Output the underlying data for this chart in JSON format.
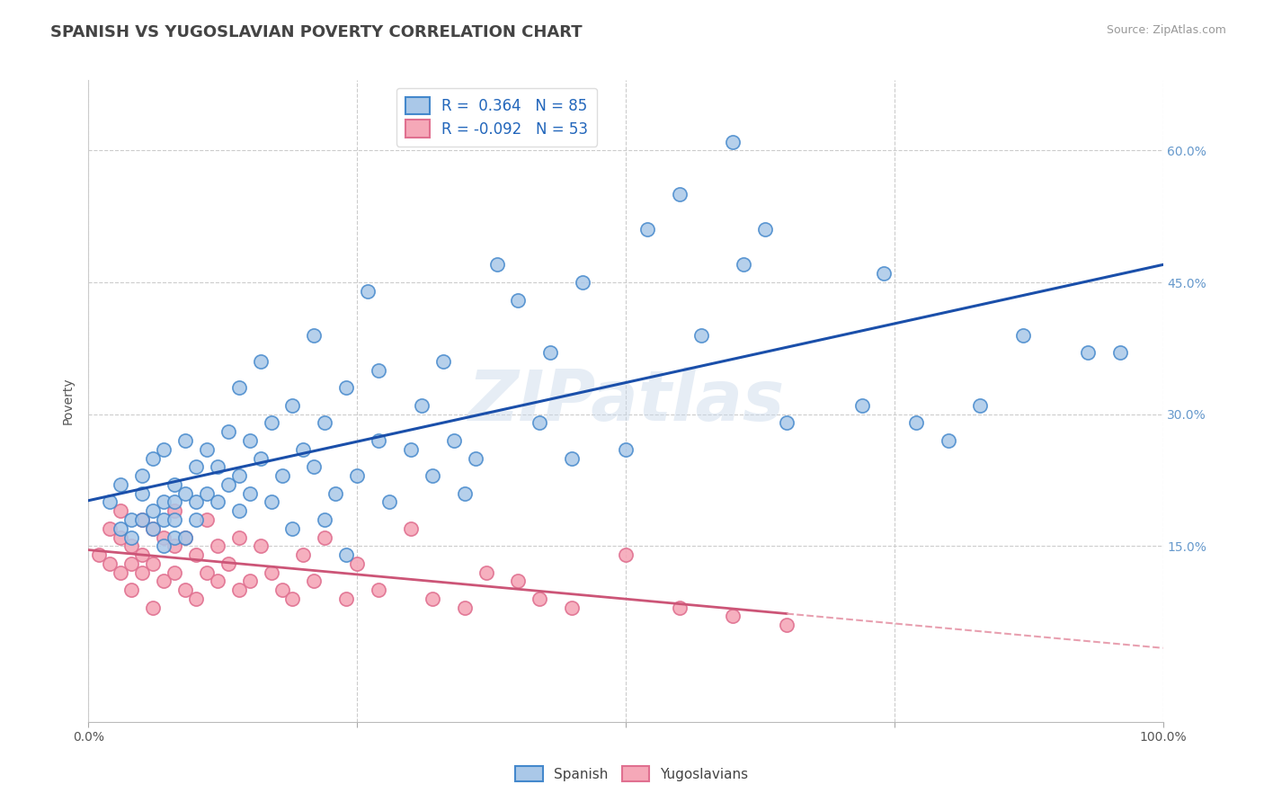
{
  "title": "SPANISH VS YUGOSLAVIAN POVERTY CORRELATION CHART",
  "source_text": "Source: ZipAtlas.com",
  "ylabel": "Poverty",
  "watermark": "ZIPatlas",
  "xlim": [
    0,
    1
  ],
  "ylim": [
    -0.05,
    0.68
  ],
  "xticks": [
    0.0,
    0.25,
    0.5,
    0.75,
    1.0
  ],
  "xticklabels": [
    "0.0%",
    "",
    "",
    "",
    "100.0%"
  ],
  "yticks": [
    0.15,
    0.3,
    0.45,
    0.6
  ],
  "yticklabels": [
    "15.0%",
    "30.0%",
    "45.0%",
    "60.0%"
  ],
  "grid_color": "#cccccc",
  "background_color": "#ffffff",
  "spanish_color": "#aac8e8",
  "yugoslav_color": "#f5a8b8",
  "spanish_edge_color": "#4488cc",
  "yugoslav_edge_color": "#e07090",
  "spanish_line_color": "#1a4faa",
  "yugoslav_line_color": "#cc5577",
  "yugoslav_dash_color": "#e8a0b0",
  "legend_R_spanish": "0.364",
  "legend_N_spanish": "85",
  "legend_R_yugoslav": "-0.092",
  "legend_N_yugoslav": "53",
  "spanish_x": [
    0.02,
    0.03,
    0.03,
    0.04,
    0.04,
    0.05,
    0.05,
    0.05,
    0.06,
    0.06,
    0.06,
    0.07,
    0.07,
    0.07,
    0.07,
    0.08,
    0.08,
    0.08,
    0.08,
    0.09,
    0.09,
    0.09,
    0.1,
    0.1,
    0.1,
    0.11,
    0.11,
    0.12,
    0.12,
    0.13,
    0.13,
    0.14,
    0.14,
    0.14,
    0.15,
    0.15,
    0.16,
    0.16,
    0.17,
    0.17,
    0.18,
    0.19,
    0.19,
    0.2,
    0.21,
    0.21,
    0.22,
    0.22,
    0.23,
    0.24,
    0.24,
    0.25,
    0.26,
    0.27,
    0.27,
    0.28,
    0.3,
    0.31,
    0.32,
    0.33,
    0.34,
    0.35,
    0.36,
    0.38,
    0.4,
    0.42,
    0.43,
    0.45,
    0.46,
    0.5,
    0.52,
    0.55,
    0.57,
    0.6,
    0.61,
    0.63,
    0.65,
    0.72,
    0.74,
    0.77,
    0.8,
    0.83,
    0.87,
    0.93,
    0.96
  ],
  "spanish_y": [
    0.2,
    0.17,
    0.22,
    0.18,
    0.16,
    0.21,
    0.18,
    0.23,
    0.19,
    0.17,
    0.25,
    0.15,
    0.2,
    0.18,
    0.26,
    0.2,
    0.16,
    0.22,
    0.18,
    0.21,
    0.27,
    0.16,
    0.2,
    0.24,
    0.18,
    0.26,
    0.21,
    0.2,
    0.24,
    0.22,
    0.28,
    0.19,
    0.23,
    0.33,
    0.21,
    0.27,
    0.25,
    0.36,
    0.2,
    0.29,
    0.23,
    0.31,
    0.17,
    0.26,
    0.24,
    0.39,
    0.18,
    0.29,
    0.21,
    0.33,
    0.14,
    0.23,
    0.44,
    0.27,
    0.35,
    0.2,
    0.26,
    0.31,
    0.23,
    0.36,
    0.27,
    0.21,
    0.25,
    0.47,
    0.43,
    0.29,
    0.37,
    0.25,
    0.45,
    0.26,
    0.51,
    0.55,
    0.39,
    0.61,
    0.47,
    0.51,
    0.29,
    0.31,
    0.46,
    0.29,
    0.27,
    0.31,
    0.39,
    0.37,
    0.37
  ],
  "yugoslav_x": [
    0.01,
    0.02,
    0.02,
    0.03,
    0.03,
    0.03,
    0.04,
    0.04,
    0.04,
    0.05,
    0.05,
    0.05,
    0.06,
    0.06,
    0.06,
    0.07,
    0.07,
    0.08,
    0.08,
    0.08,
    0.09,
    0.09,
    0.1,
    0.1,
    0.11,
    0.11,
    0.12,
    0.12,
    0.13,
    0.14,
    0.14,
    0.15,
    0.16,
    0.17,
    0.18,
    0.19,
    0.2,
    0.21,
    0.22,
    0.24,
    0.25,
    0.27,
    0.3,
    0.32,
    0.35,
    0.37,
    0.4,
    0.42,
    0.45,
    0.5,
    0.55,
    0.6,
    0.65
  ],
  "yugoslav_y": [
    0.14,
    0.13,
    0.17,
    0.12,
    0.16,
    0.19,
    0.13,
    0.1,
    0.15,
    0.18,
    0.12,
    0.14,
    0.08,
    0.17,
    0.13,
    0.11,
    0.16,
    0.12,
    0.15,
    0.19,
    0.1,
    0.16,
    0.14,
    0.09,
    0.18,
    0.12,
    0.15,
    0.11,
    0.13,
    0.1,
    0.16,
    0.11,
    0.15,
    0.12,
    0.1,
    0.09,
    0.14,
    0.11,
    0.16,
    0.09,
    0.13,
    0.1,
    0.17,
    0.09,
    0.08,
    0.12,
    0.11,
    0.09,
    0.08,
    0.14,
    0.08,
    0.07,
    0.06
  ],
  "title_fontsize": 13,
  "axis_label_fontsize": 10,
  "tick_fontsize": 10,
  "legend_fontsize": 12,
  "marker_size": 120,
  "marker_linewidth": 1.2
}
